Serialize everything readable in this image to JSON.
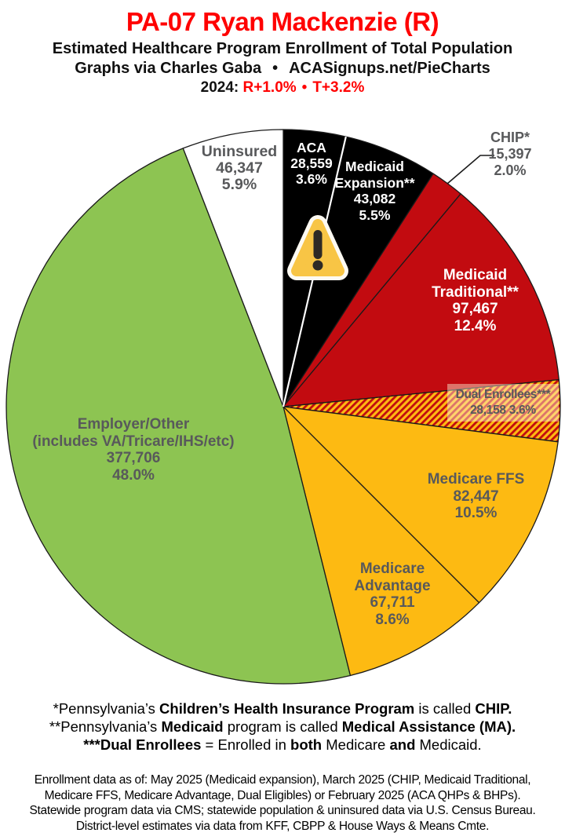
{
  "header": {
    "title": "PA-07 Ryan Mackenzie (R)",
    "subtitle": "Estimated Healthcare Program Enrollment of Total Population",
    "credit_left": "Graphs via Charles Gaba",
    "credit_sep": "•",
    "credit_right": "ACASignups.net/PieCharts",
    "partisan_prefix": "2024:",
    "partisan_lean": "R+1.0%",
    "partisan_sep": "•",
    "partisan_trump": "T+3.2%"
  },
  "chart_data": {
    "type": "pie",
    "title": "Estimated Healthcare Program Enrollment of Total Population",
    "start_angle": "12 o'clock, clockwise",
    "legend_position": "labels-on-slices",
    "slices": [
      {
        "id": "aca",
        "label": "ACA",
        "enrollment": "28,559",
        "value": 28559,
        "pct": 3.6,
        "pct_label": "3.6%",
        "color": "#000000",
        "text_color": "#ffffff",
        "end_divider": "#ffffff"
      },
      {
        "id": "medicaid-expansion",
        "label": "Medicaid Expansion**",
        "enrollment": "43,082",
        "value": 43082,
        "pct": 5.5,
        "pct_label": "5.5%",
        "color": "#000000",
        "text_color": "#ffffff"
      },
      {
        "id": "chip",
        "label": "CHIP*",
        "enrollment": "15,397",
        "value": 15397,
        "pct": 2.0,
        "pct_label": "2.0%",
        "color": "#c20b10",
        "text_color": "#58595b",
        "label_outside": true
      },
      {
        "id": "medicaid-traditional",
        "label": "Medicaid Traditional**",
        "enrollment": "97,467",
        "value": 97467,
        "pct": 12.4,
        "pct_label": "12.4%",
        "color": "#c20b10",
        "text_color": "#ffffff"
      },
      {
        "id": "dual-enrollees",
        "label": "Dual Enrollees***",
        "enrollment": "28,158",
        "value": 28158,
        "pct": 3.6,
        "pct_label": "3.6%",
        "color": "hatch",
        "hatch_colors": [
          "#c20b10",
          "#fdba12"
        ],
        "text_color": "#58595b"
      },
      {
        "id": "medicare-ffs",
        "label": "Medicare FFS",
        "enrollment": "82,447",
        "value": 82447,
        "pct": 10.5,
        "pct_label": "10.5%",
        "color": "#fdba12",
        "text_color": "#58595b"
      },
      {
        "id": "medicare-advantage",
        "label": "Medicare Advantage",
        "enrollment": "67,711",
        "value": 67711,
        "pct": 8.6,
        "pct_label": "8.6%",
        "color": "#fdba12",
        "text_color": "#58595b"
      },
      {
        "id": "employer-other",
        "label": "Employer/Other",
        "sublabel": "(includes VA/Tricare/IHS/etc)",
        "enrollment": "377,706",
        "value": 377706,
        "pct": 48.0,
        "pct_label": "48.0%",
        "color": "#8dc452",
        "text_color": "#58595b"
      },
      {
        "id": "uninsured",
        "label": "Uninsured",
        "enrollment": "46,347",
        "value": 46347,
        "pct": 5.9,
        "pct_label": "5.9%",
        "color": "#ffffff",
        "text_color": "#58595b"
      }
    ]
  },
  "footnotes": {
    "line1": {
      "r1": "*Pennsylvania’s ",
      "b1": "Children’s Health Insurance Program",
      "r2": " is called ",
      "b2": "CHIP."
    },
    "line2": {
      "r1": "**Pennsylvania’s ",
      "b1": "Medicaid",
      "r2": " program is called ",
      "b2": "Medical Assistance (MA)."
    },
    "line3": {
      "b1": "***Dual Enrollees",
      "r1": " = Enrolled in ",
      "b2": "both",
      "r2": " Medicare ",
      "b3": "and",
      "r3": " Medicaid."
    }
  },
  "source": {
    "line1": "Enrollment data as of: May 2025 (Medicaid expansion), March 2025 (CHIP, Medicaid Traditional,",
    "line2": "Medicare FFS, Medicare Advantage, Dual Eligibles) or February 2025 (ACA QHPs & BHPs).",
    "line3": "Statewide program data via CMS; statewide population & uninsured data via U.S. Census Bureau.",
    "line4": "District-level estimates via data from KFF, CBPP & House Ways & Means Cmte."
  }
}
